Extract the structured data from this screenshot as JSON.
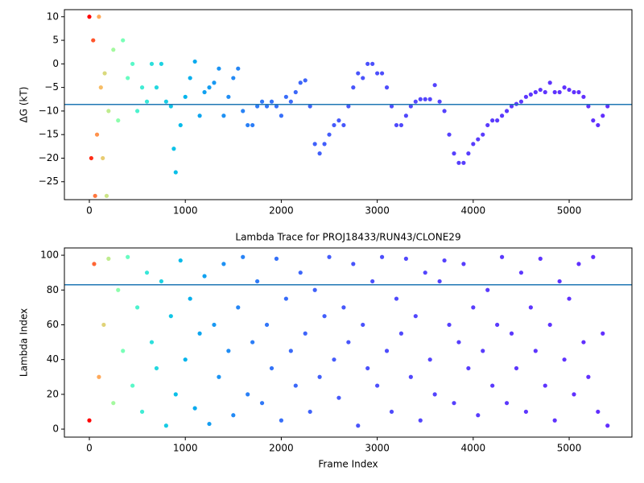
{
  "chart_data": [
    {
      "type": "scatter",
      "ylabel": "ΔG (kT)",
      "colormap": "rainbow",
      "hline": -8.6,
      "hline_color": "#1f77b4",
      "x": [
        0,
        20,
        40,
        60,
        80,
        100,
        120,
        140,
        160,
        180,
        200,
        250,
        300,
        350,
        400,
        450,
        500,
        550,
        600,
        650,
        700,
        750,
        800,
        850,
        880,
        900,
        950,
        1000,
        1050,
        1100,
        1150,
        1200,
        1250,
        1300,
        1350,
        1400,
        1450,
        1500,
        1550,
        1600,
        1650,
        1700,
        1750,
        1800,
        1850,
        1900,
        1950,
        2000,
        2050,
        2100,
        2150,
        2200,
        2250,
        2300,
        2350,
        2400,
        2450,
        2500,
        2550,
        2600,
        2650,
        2700,
        2750,
        2800,
        2850,
        2900,
        2950,
        3000,
        3050,
        3100,
        3150,
        3200,
        3250,
        3300,
        3350,
        3400,
        3450,
        3500,
        3550,
        3600,
        3650,
        3700,
        3750,
        3800,
        3850,
        3900,
        3950,
        4000,
        4050,
        4100,
        4150,
        4200,
        4250,
        4300,
        4350,
        4400,
        4450,
        4500,
        4550,
        4600,
        4650,
        4700,
        4750,
        4800,
        4850,
        4900,
        4950,
        5000,
        5050,
        5100,
        5150,
        5200,
        5250,
        5300,
        5350,
        5400
      ],
      "values": [
        10,
        -20,
        5,
        -28,
        -15,
        10,
        -5,
        -20,
        -2,
        -28,
        -10,
        3,
        -12,
        5,
        -3,
        0,
        -10,
        -5,
        -8,
        0,
        -5,
        0,
        -8,
        -9,
        -18,
        -23,
        -13,
        -7,
        -3,
        0.5,
        -11,
        -6,
        -5,
        -4,
        -1,
        -11,
        -7,
        -3,
        -1,
        -10,
        -13,
        -13,
        -9,
        -8,
        -9,
        -8,
        -9,
        -11,
        -7,
        -8,
        -6,
        -4,
        -3.5,
        -9,
        -17,
        -19,
        -17,
        -15,
        -13,
        -12,
        -13,
        -9,
        -5,
        -2,
        -3,
        0,
        0,
        -2,
        -2,
        -5,
        -9,
        -13,
        -13,
        -11,
        -9,
        -8,
        -7.5,
        -7.5,
        -7.5,
        -4.5,
        -8,
        -10,
        -15,
        -19,
        -21,
        -21,
        -19,
        -17,
        -16,
        -15,
        -13,
        -12,
        -12,
        -11,
        -10,
        -9,
        -8.5,
        -8,
        -7,
        -6.5,
        -6,
        -5.5,
        -6,
        -4,
        -6,
        -6,
        -5,
        -5.5,
        -6,
        -6,
        -7,
        -9,
        -12,
        -13,
        -11,
        -9
      ],
      "xlim": [
        -260,
        5654
      ],
      "ylim": [
        -28.8,
        11.5
      ],
      "xticks": [
        0,
        1000,
        2000,
        3000,
        4000,
        5000
      ],
      "yticks": [
        {
          "value": -25,
          "label": "−25"
        },
        {
          "value": -20,
          "label": "−20"
        },
        {
          "value": -15,
          "label": "−15"
        },
        {
          "value": -10,
          "label": "−10"
        },
        {
          "value": -5,
          "label": "−5"
        },
        0,
        5,
        10
      ]
    },
    {
      "type": "scatter",
      "title": "Lambda Trace for PROJ18433/RUN43/CLONE29",
      "xlabel": "Frame Index",
      "ylabel": "Lambda Index",
      "colormap": "rainbow",
      "hline": 83,
      "hline_color": "#1f77b4",
      "x": [
        0,
        50,
        100,
        150,
        200,
        250,
        300,
        350,
        400,
        450,
        500,
        550,
        600,
        650,
        700,
        750,
        800,
        850,
        900,
        950,
        1000,
        1050,
        1100,
        1150,
        1200,
        1250,
        1300,
        1350,
        1400,
        1450,
        1500,
        1550,
        1600,
        1650,
        1700,
        1750,
        1800,
        1850,
        1900,
        1950,
        2000,
        2050,
        2100,
        2150,
        2200,
        2250,
        2300,
        2350,
        2400,
        2450,
        2500,
        2550,
        2600,
        2650,
        2700,
        2750,
        2800,
        2850,
        2900,
        2950,
        3000,
        3050,
        3100,
        3150,
        3200,
        3250,
        3300,
        3350,
        3400,
        3450,
        3500,
        3550,
        3600,
        3650,
        3700,
        3750,
        3800,
        3850,
        3900,
        3950,
        4000,
        4050,
        4100,
        4150,
        4200,
        4250,
        4300,
        4350,
        4400,
        4450,
        4500,
        4550,
        4600,
        4650,
        4700,
        4750,
        4800,
        4850,
        4900,
        4950,
        5000,
        5050,
        5100,
        5150,
        5200,
        5250,
        5300,
        5350,
        5400
      ],
      "values": [
        5,
        95,
        30,
        60,
        98,
        15,
        80,
        45,
        99,
        25,
        70,
        10,
        90,
        50,
        35,
        85,
        2,
        65,
        20,
        97,
        40,
        75,
        12,
        55,
        88,
        3,
        60,
        30,
        95,
        45,
        8,
        70,
        99,
        20,
        50,
        85,
        15,
        60,
        35,
        98,
        5,
        75,
        45,
        25,
        90,
        55,
        10,
        80,
        30,
        65,
        99,
        40,
        18,
        70,
        50,
        95,
        2,
        60,
        35,
        85,
        25,
        99,
        45,
        10,
        75,
        55,
        98,
        30,
        65,
        5,
        90,
        40,
        20,
        85,
        97,
        60,
        15,
        50,
        95,
        35,
        70,
        8,
        45,
        80,
        25,
        60,
        99,
        15,
        55,
        35,
        90,
        10,
        70,
        45,
        98,
        25,
        60,
        5,
        85,
        40,
        75,
        20,
        95,
        50,
        30,
        99,
        10,
        55,
        2
      ],
      "xlim": [
        -260,
        5654
      ],
      "ylim": [
        -4.6,
        104.2
      ],
      "xticks": [
        0,
        1000,
        2000,
        3000,
        4000,
        5000
      ],
      "yticks": [
        0,
        20,
        40,
        60,
        80,
        100
      ]
    }
  ]
}
